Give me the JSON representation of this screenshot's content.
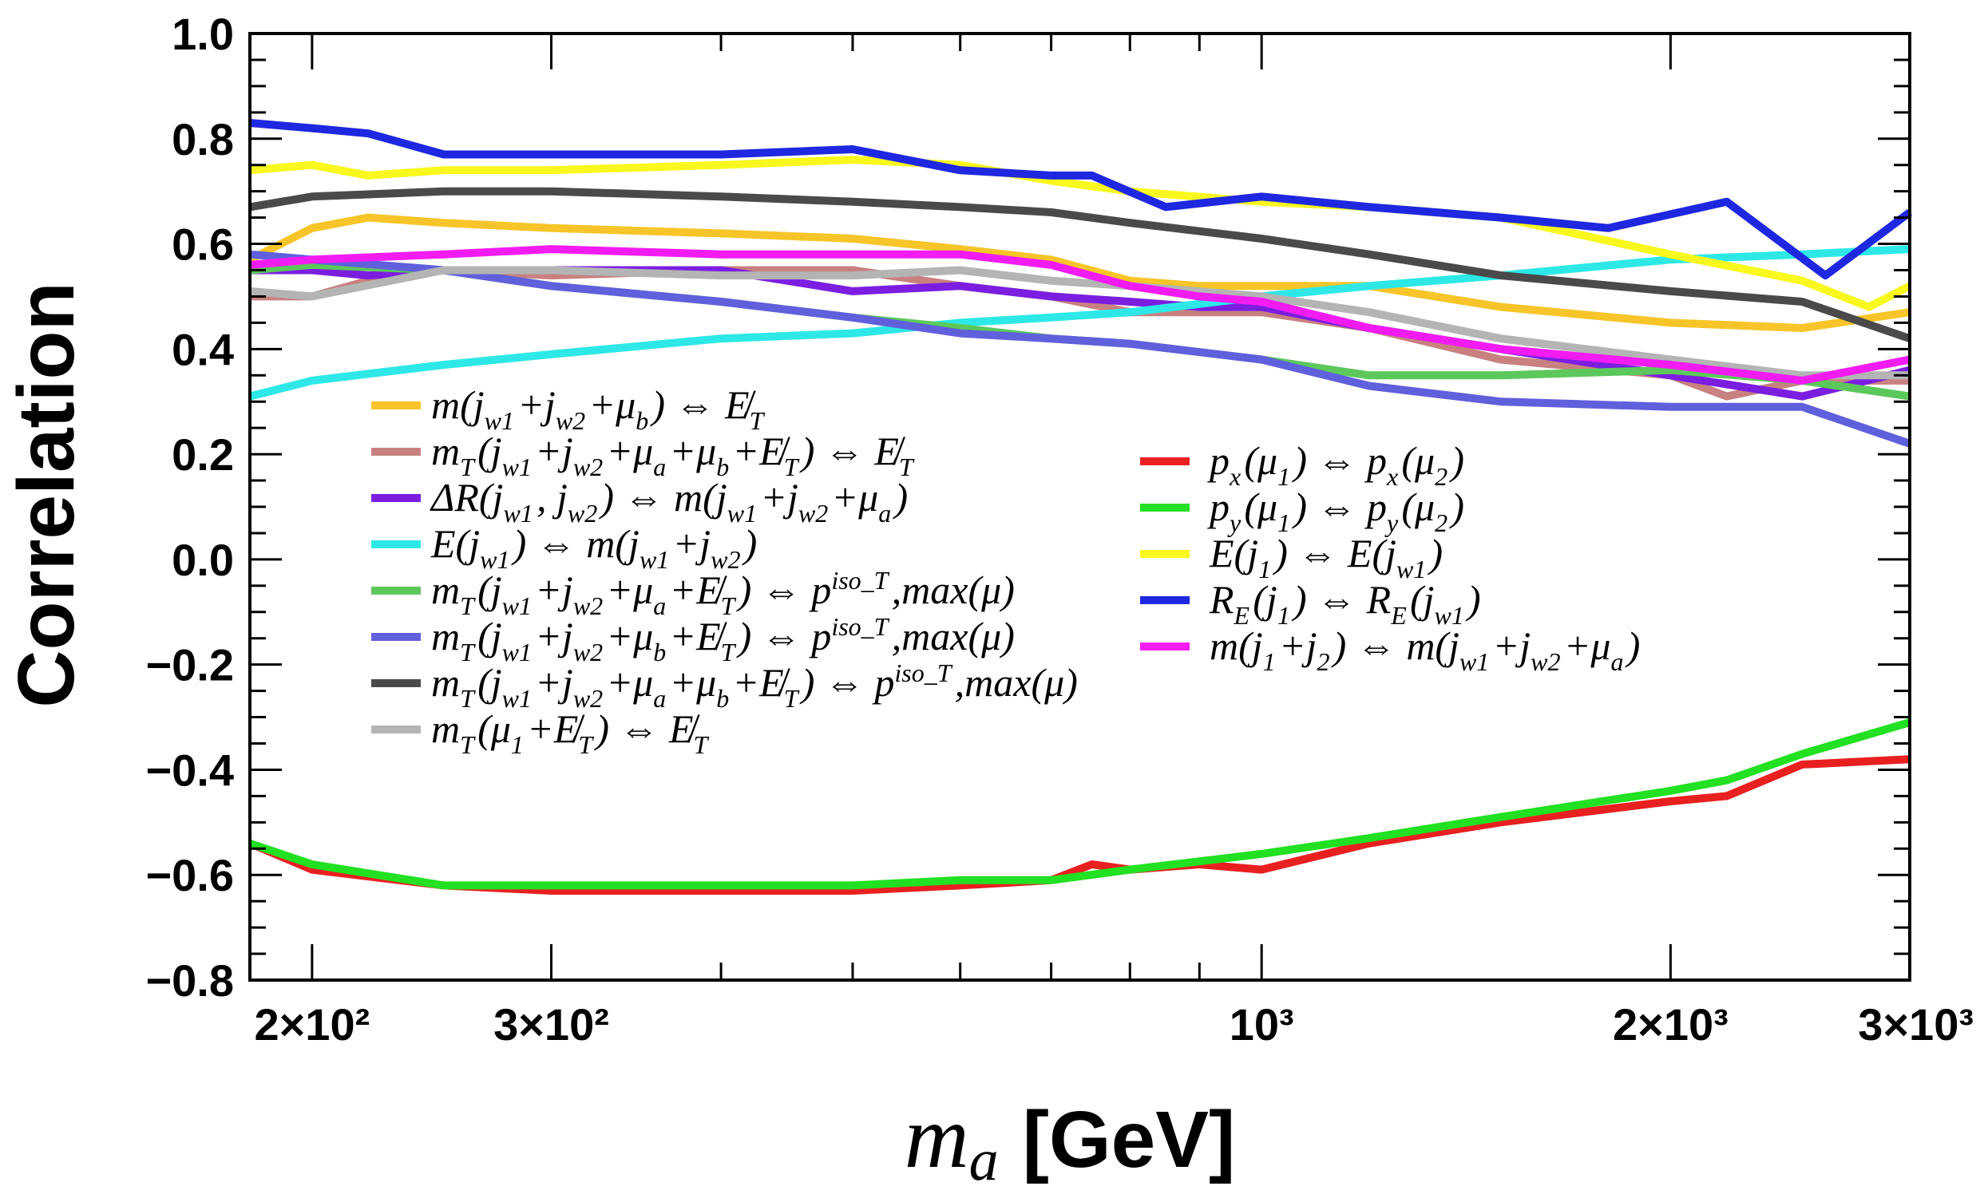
{
  "chart_data": {
    "type": "line",
    "title": "",
    "xlabel_var": "m",
    "xlabel_sub": "a",
    "xlabel_unit": "[GeV]",
    "ylabel": "Correlation",
    "xscale": "log",
    "xlim": [
      180,
      3000
    ],
    "ylim": [
      -0.8,
      1.0
    ],
    "grid": false,
    "yticks": [
      "1.0",
      "0.8",
      "0.6",
      "0.4",
      "0.2",
      "0.0",
      "−0.2",
      "−0.4",
      "−0.6",
      "−0.8"
    ],
    "xtick_labels": [
      {
        "value": 200,
        "label": "2×10²"
      },
      {
        "value": 300,
        "label": "3×10²"
      },
      {
        "value": 1000,
        "label": "10³"
      },
      {
        "value": 2000,
        "label": "2×10³"
      },
      {
        "value": 3000,
        "label": "3×10³"
      }
    ],
    "legend_left": "center-left",
    "legend_right": "center-right",
    "series": [
      {
        "name": "m(j_w1+j_w2+μ_b) ⇔ E̸_T",
        "color": "#f7c52a",
        "column": 0,
        "points": [
          [
            180,
            0.57
          ],
          [
            200,
            0.63
          ],
          [
            220,
            0.65
          ],
          [
            250,
            0.64
          ],
          [
            300,
            0.63
          ],
          [
            400,
            0.62
          ],
          [
            500,
            0.61
          ],
          [
            600,
            0.59
          ],
          [
            700,
            0.57
          ],
          [
            800,
            0.53
          ],
          [
            900,
            0.52
          ],
          [
            1000,
            0.52
          ],
          [
            1200,
            0.52
          ],
          [
            1500,
            0.48
          ],
          [
            2000,
            0.45
          ],
          [
            2500,
            0.44
          ],
          [
            3000,
            0.47
          ]
        ]
      },
      {
        "name": "m_T(j_w1+j_w2+μ_a+μ_b+E̸_T) ⇔ E̸_T",
        "color": "#c98080",
        "column": 0,
        "points": [
          [
            180,
            0.5
          ],
          [
            200,
            0.5
          ],
          [
            220,
            0.53
          ],
          [
            250,
            0.55
          ],
          [
            300,
            0.54
          ],
          [
            400,
            0.55
          ],
          [
            500,
            0.55
          ],
          [
            600,
            0.52
          ],
          [
            700,
            0.5
          ],
          [
            800,
            0.47
          ],
          [
            900,
            0.47
          ],
          [
            1000,
            0.47
          ],
          [
            1200,
            0.44
          ],
          [
            1500,
            0.38
          ],
          [
            2000,
            0.35
          ],
          [
            2200,
            0.31
          ],
          [
            2500,
            0.34
          ],
          [
            3000,
            0.34
          ]
        ]
      },
      {
        "name": "ΔR(j_w1, j_w2) ⇔ m(j_w1+j_w2+μ_a)",
        "color": "#7b1ee0",
        "column": 0,
        "points": [
          [
            180,
            0.55
          ],
          [
            200,
            0.55
          ],
          [
            220,
            0.54
          ],
          [
            250,
            0.55
          ],
          [
            300,
            0.55
          ],
          [
            400,
            0.55
          ],
          [
            500,
            0.51
          ],
          [
            600,
            0.52
          ],
          [
            700,
            0.5
          ],
          [
            800,
            0.49
          ],
          [
            900,
            0.48
          ],
          [
            1000,
            0.48
          ],
          [
            1200,
            0.44
          ],
          [
            1500,
            0.4
          ],
          [
            2000,
            0.35
          ],
          [
            2500,
            0.31
          ],
          [
            3000,
            0.36
          ]
        ]
      },
      {
        "name": "E(j_w1) ⇔ m(j_w1+j_w2)",
        "color": "#2ee8e8",
        "column": 0,
        "points": [
          [
            180,
            0.31
          ],
          [
            200,
            0.34
          ],
          [
            250,
            0.37
          ],
          [
            300,
            0.39
          ],
          [
            400,
            0.42
          ],
          [
            500,
            0.43
          ],
          [
            600,
            0.45
          ],
          [
            700,
            0.46
          ],
          [
            800,
            0.47
          ],
          [
            1000,
            0.5
          ],
          [
            1200,
            0.52
          ],
          [
            1500,
            0.54
          ],
          [
            2000,
            0.57
          ],
          [
            2500,
            0.58
          ],
          [
            3000,
            0.59
          ]
        ]
      },
      {
        "name": "m_T(j_w1+j_w2+μ_a+E̸_T) ⇔ p^iso_T,max(μ)",
        "color": "#5cc85c",
        "column": 0,
        "points": [
          [
            180,
            0.55
          ],
          [
            200,
            0.56
          ],
          [
            250,
            0.55
          ],
          [
            300,
            0.52
          ],
          [
            400,
            0.49
          ],
          [
            500,
            0.46
          ],
          [
            600,
            0.44
          ],
          [
            700,
            0.42
          ],
          [
            800,
            0.41
          ],
          [
            1000,
            0.38
          ],
          [
            1200,
            0.35
          ],
          [
            1500,
            0.35
          ],
          [
            2000,
            0.36
          ],
          [
            2500,
            0.34
          ],
          [
            3000,
            0.31
          ]
        ]
      },
      {
        "name": "m_T(j_w1+j_w2+μ_b+E̸_T) ⇔ p^iso_T,max(μ)",
        "color": "#6060dc",
        "column": 0,
        "points": [
          [
            180,
            0.58
          ],
          [
            200,
            0.57
          ],
          [
            250,
            0.55
          ],
          [
            300,
            0.52
          ],
          [
            400,
            0.49
          ],
          [
            500,
            0.46
          ],
          [
            600,
            0.43
          ],
          [
            700,
            0.42
          ],
          [
            800,
            0.41
          ],
          [
            1000,
            0.38
          ],
          [
            1200,
            0.33
          ],
          [
            1500,
            0.3
          ],
          [
            2000,
            0.29
          ],
          [
            2500,
            0.29
          ],
          [
            3000,
            0.22
          ]
        ]
      },
      {
        "name": "m_T(j_w1+j_w2+μ_a+μ_b+E̸_T) ⇔ p^iso_T,max(μ)",
        "color": "#4a4a4a",
        "column": 0,
        "points": [
          [
            180,
            0.67
          ],
          [
            200,
            0.69
          ],
          [
            250,
            0.7
          ],
          [
            300,
            0.7
          ],
          [
            400,
            0.69
          ],
          [
            500,
            0.68
          ],
          [
            600,
            0.67
          ],
          [
            700,
            0.66
          ],
          [
            800,
            0.64
          ],
          [
            1000,
            0.61
          ],
          [
            1200,
            0.58
          ],
          [
            1500,
            0.54
          ],
          [
            2000,
            0.51
          ],
          [
            2500,
            0.49
          ],
          [
            3000,
            0.42
          ]
        ]
      },
      {
        "name": "m_T(μ_1+E̸_T) ⇔ E̸_T",
        "color": "#b4b4b4",
        "column": 0,
        "points": [
          [
            180,
            0.51
          ],
          [
            200,
            0.5
          ],
          [
            250,
            0.55
          ],
          [
            300,
            0.55
          ],
          [
            400,
            0.54
          ],
          [
            500,
            0.54
          ],
          [
            600,
            0.55
          ],
          [
            700,
            0.53
          ],
          [
            800,
            0.52
          ],
          [
            1000,
            0.5
          ],
          [
            1200,
            0.47
          ],
          [
            1500,
            0.42
          ],
          [
            2000,
            0.38
          ],
          [
            2500,
            0.35
          ],
          [
            3000,
            0.35
          ]
        ]
      },
      {
        "name": "p_x(μ_1) ⇔ p_x(μ_2)",
        "color": "#e82020",
        "column": 1,
        "points": [
          [
            180,
            -0.54
          ],
          [
            200,
            -0.59
          ],
          [
            250,
            -0.62
          ],
          [
            300,
            -0.63
          ],
          [
            400,
            -0.63
          ],
          [
            500,
            -0.63
          ],
          [
            600,
            -0.62
          ],
          [
            700,
            -0.61
          ],
          [
            750,
            -0.58
          ],
          [
            800,
            -0.59
          ],
          [
            900,
            -0.58
          ],
          [
            1000,
            -0.59
          ],
          [
            1200,
            -0.54
          ],
          [
            1500,
            -0.5
          ],
          [
            2000,
            -0.46
          ],
          [
            2200,
            -0.45
          ],
          [
            2500,
            -0.39
          ],
          [
            3000,
            -0.38
          ]
        ]
      },
      {
        "name": "p_y(μ_1) ⇔ p_y(μ_2)",
        "color": "#22e022",
        "column": 1,
        "points": [
          [
            180,
            -0.54
          ],
          [
            200,
            -0.58
          ],
          [
            250,
            -0.62
          ],
          [
            300,
            -0.62
          ],
          [
            400,
            -0.62
          ],
          [
            500,
            -0.62
          ],
          [
            600,
            -0.61
          ],
          [
            700,
            -0.61
          ],
          [
            800,
            -0.59
          ],
          [
            1000,
            -0.56
          ],
          [
            1200,
            -0.53
          ],
          [
            1500,
            -0.49
          ],
          [
            2000,
            -0.44
          ],
          [
            2200,
            -0.42
          ],
          [
            2500,
            -0.37
          ],
          [
            3000,
            -0.31
          ]
        ]
      },
      {
        "name": "E(j_1) ⇔ E(j_w1)",
        "color": "#f8f81e",
        "column": 1,
        "points": [
          [
            180,
            0.74
          ],
          [
            200,
            0.75
          ],
          [
            220,
            0.73
          ],
          [
            250,
            0.74
          ],
          [
            300,
            0.74
          ],
          [
            400,
            0.75
          ],
          [
            500,
            0.76
          ],
          [
            600,
            0.75
          ],
          [
            700,
            0.72
          ],
          [
            800,
            0.7
          ],
          [
            1000,
            0.68
          ],
          [
            1200,
            0.67
          ],
          [
            1500,
            0.65
          ],
          [
            2000,
            0.58
          ],
          [
            2500,
            0.53
          ],
          [
            2800,
            0.48
          ],
          [
            3000,
            0.52
          ]
        ]
      },
      {
        "name": "R_E(j_1) ⇔ R_E(j_w1)",
        "color": "#1e28e0",
        "column": 1,
        "points": [
          [
            180,
            0.83
          ],
          [
            200,
            0.82
          ],
          [
            220,
            0.81
          ],
          [
            250,
            0.77
          ],
          [
            300,
            0.77
          ],
          [
            400,
            0.77
          ],
          [
            500,
            0.78
          ],
          [
            600,
            0.74
          ],
          [
            700,
            0.73
          ],
          [
            750,
            0.73
          ],
          [
            850,
            0.67
          ],
          [
            1000,
            0.69
          ],
          [
            1200,
            0.67
          ],
          [
            1500,
            0.65
          ],
          [
            1800,
            0.63
          ],
          [
            2200,
            0.68
          ],
          [
            2600,
            0.54
          ],
          [
            3000,
            0.66
          ]
        ]
      },
      {
        "name": "m(j_1+j_2) ⇔ m(j_w1+j_w2+μ_a)",
        "color": "#f21cf2",
        "column": 1,
        "points": [
          [
            180,
            0.56
          ],
          [
            200,
            0.57
          ],
          [
            250,
            0.58
          ],
          [
            300,
            0.59
          ],
          [
            400,
            0.58
          ],
          [
            500,
            0.58
          ],
          [
            600,
            0.58
          ],
          [
            700,
            0.56
          ],
          [
            800,
            0.52
          ],
          [
            900,
            0.5
          ],
          [
            1000,
            0.49
          ],
          [
            1200,
            0.44
          ],
          [
            1500,
            0.4
          ],
          [
            2000,
            0.37
          ],
          [
            2500,
            0.34
          ],
          [
            3000,
            0.38
          ]
        ]
      }
    ]
  }
}
